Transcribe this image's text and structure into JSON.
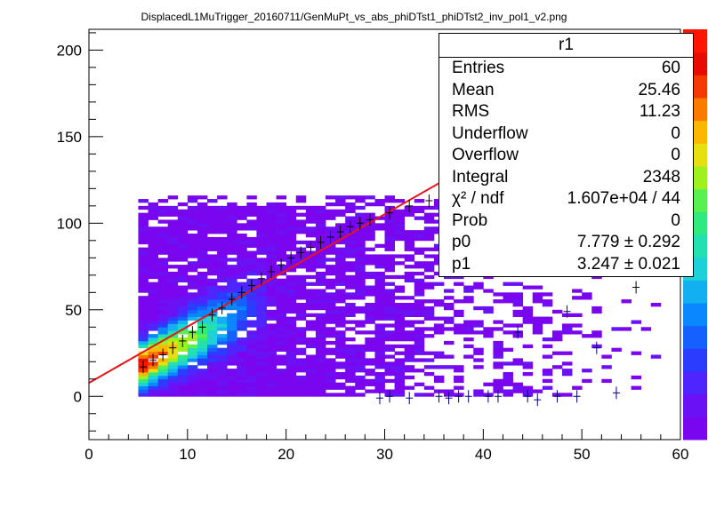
{
  "page": {
    "title": "DisplacedL1MuTrigger_20160711/GenMuPt_vs_abs_phiDTst1_phiDTst2_inv_pol1_v2.png"
  },
  "stats_box": {
    "title": "r1",
    "rows": [
      {
        "label": "Entries",
        "value": "60"
      },
      {
        "label": "Mean",
        "value": "25.46"
      },
      {
        "label": "RMS",
        "value": "11.23"
      },
      {
        "label": "Underflow",
        "value": "0"
      },
      {
        "label": "Overflow",
        "value": "0"
      },
      {
        "label": "Integral",
        "value": "2348"
      },
      {
        "label": "χ² / ndf",
        "value": "1.607e+04 / 44"
      },
      {
        "label": "Prob",
        "value": "0"
      },
      {
        "label": "p0",
        "value": "7.779 ± 0.292"
      },
      {
        "label": "p1",
        "value": "3.247 ± 0.021"
      }
    ]
  },
  "colors": {
    "fit_line": "#e8141a",
    "profile_marker": "#000080",
    "palette": [
      "#7a06f0",
      "#6a12f5",
      "#4e24ff",
      "#2c3cff",
      "#1660ff",
      "#0a86ff",
      "#12b0f0",
      "#1ed0d8",
      "#22e0b0",
      "#30ea80",
      "#5af050",
      "#9ef020",
      "#e6e010",
      "#fcb800",
      "#fb7a00",
      "#f53a00",
      "#e80c00",
      "#ff1600"
    ]
  },
  "chart_data": {
    "type": "heatmap",
    "title": "",
    "xlabel": "",
    "ylabel": "",
    "xlim": [
      0,
      60
    ],
    "ylim": [
      -25,
      212
    ],
    "x_ticks": [
      0,
      10,
      20,
      30,
      40,
      50,
      60
    ],
    "y_ticks": [
      0,
      50,
      100,
      150,
      200
    ],
    "grid": false,
    "fit": {
      "function": "pol1",
      "p0": 7.779,
      "p1": 3.247
    },
    "profile_points": [
      {
        "x": 5.5,
        "y": 17
      },
      {
        "x": 6.5,
        "y": 21
      },
      {
        "x": 7.5,
        "y": 24
      },
      {
        "x": 8.5,
        "y": 28
      },
      {
        "x": 9.5,
        "y": 32
      },
      {
        "x": 10.5,
        "y": 37
      },
      {
        "x": 11.5,
        "y": 40
      },
      {
        "x": 12.5,
        "y": 47
      },
      {
        "x": 13.5,
        "y": 51
      },
      {
        "x": 14.5,
        "y": 56
      },
      {
        "x": 15.5,
        "y": 60
      },
      {
        "x": 16.5,
        "y": 64
      },
      {
        "x": 17.5,
        "y": 68
      },
      {
        "x": 18.5,
        "y": 72
      },
      {
        "x": 19.5,
        "y": 76
      },
      {
        "x": 20.5,
        "y": 80
      },
      {
        "x": 21.5,
        "y": 83
      },
      {
        "x": 22.5,
        "y": 86
      },
      {
        "x": 23.5,
        "y": 89
      },
      {
        "x": 24.5,
        "y": 92
      },
      {
        "x": 25.5,
        "y": 95
      },
      {
        "x": 26.5,
        "y": 98
      },
      {
        "x": 27.5,
        "y": 100
      },
      {
        "x": 28.5,
        "y": 102
      },
      {
        "x": 30.5,
        "y": 106
      },
      {
        "x": 32.5,
        "y": 110
      },
      {
        "x": 34.5,
        "y": 113
      },
      {
        "x": 29.5,
        "y": -1
      },
      {
        "x": 30.5,
        "y": 0
      },
      {
        "x": 32.5,
        "y": -1
      },
      {
        "x": 35.5,
        "y": 0
      },
      {
        "x": 36.5,
        "y": -1
      },
      {
        "x": 37.5,
        "y": 0
      },
      {
        "x": 38.5,
        "y": 0
      },
      {
        "x": 40.5,
        "y": 0
      },
      {
        "x": 41.5,
        "y": 0
      },
      {
        "x": 44.5,
        "y": 0
      },
      {
        "x": 45.5,
        "y": -2
      },
      {
        "x": 47.5,
        "y": 0
      },
      {
        "x": 49.5,
        "y": 0
      },
      {
        "x": 53.5,
        "y": 2
      },
      {
        "x": 51.5,
        "y": 28
      },
      {
        "x": 55.5,
        "y": 63
      },
      {
        "x": 48.5,
        "y": 49
      },
      {
        "x": 43.5,
        "y": 37
      }
    ]
  }
}
